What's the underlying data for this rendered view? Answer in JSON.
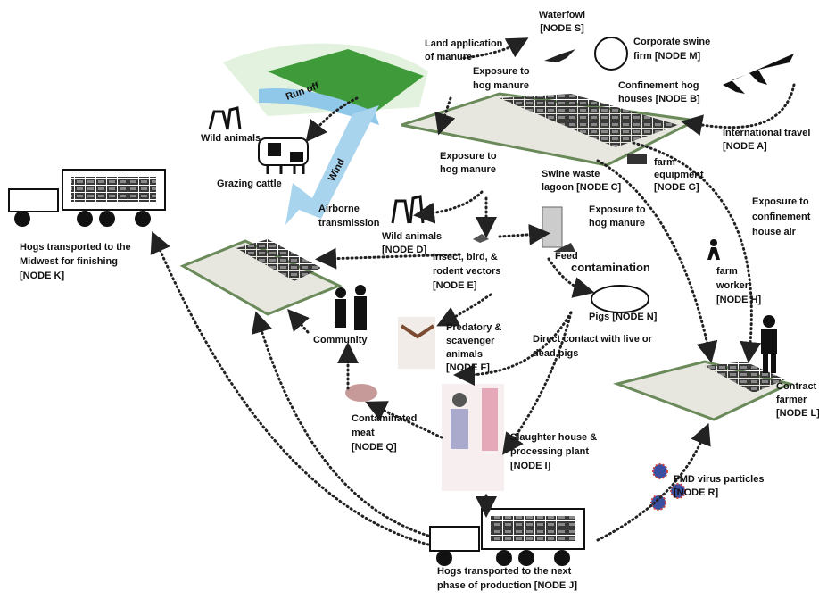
{
  "labels": [
    {
      "lines": [
        "Waterfowl",
        "[NODE S]"
      ]
    },
    {
      "lines": [
        "Land application",
        "of manure"
      ]
    },
    {
      "lines": [
        "Corporate swine",
        "firm  [NODE M]"
      ]
    },
    {
      "lines": [
        "Exposure to",
        "hog manure"
      ]
    },
    {
      "lines": [
        "Confinement hog",
        "houses  [NODE B]"
      ]
    },
    {
      "lines": [
        "Run  off"
      ]
    },
    {
      "lines": [
        "Wild animals"
      ]
    },
    {
      "lines": [
        "Grazing cattle"
      ]
    },
    {
      "lines": [
        "Wind"
      ]
    },
    {
      "lines": [
        "International travel",
        "[NODE A]"
      ]
    },
    {
      "lines": [
        "Exposure to",
        "hog manure"
      ]
    },
    {
      "lines": [
        "Swine waste",
        "lagoon [NODE C]"
      ]
    },
    {
      "lines": [
        "farm",
        "equipment",
        "[NODE G]"
      ]
    },
    {
      "lines": [
        "Exposure to",
        "hog manure"
      ]
    },
    {
      "lines": [
        "Exposure to",
        "confinement",
        "house air"
      ]
    },
    {
      "lines": [
        "Airborne",
        "transmission"
      ]
    },
    {
      "lines": [
        "Wild animals",
        "[NODE D]"
      ]
    },
    {
      "lines": [
        "Hogs transported to the",
        "Midwest for finishing",
        "[NODE K]"
      ]
    },
    {
      "lines": [
        "Insect, bird, &",
        "rodent vectors",
        "[NODE E]"
      ]
    },
    {
      "lines": [
        "Feed"
      ]
    },
    {
      "lines": [
        "contamination"
      ]
    },
    {
      "lines": [
        "farm",
        "worker",
        "[NODE H]"
      ]
    },
    {
      "lines": [
        "Pigs [NODE N]"
      ]
    },
    {
      "lines": [
        "Community"
      ]
    },
    {
      "lines": [
        "Predatory &",
        "scavenger",
        "animals",
        "[NODE F]"
      ]
    },
    {
      "lines": [
        "Direct contact with live or",
        "dead pigs"
      ]
    },
    {
      "lines": [
        "Contract",
        "farmer",
        "[NODE L]"
      ]
    },
    {
      "lines": [
        "Contaminated",
        "meat",
        "[NODE Q]"
      ]
    },
    {
      "lines": [
        "Slaughter house &",
        "processing plant",
        "[NODE I]"
      ]
    },
    {
      "lines": [
        "FMD virus particles",
        "[NODE R]"
      ]
    },
    {
      "lines": [
        "Hogs transported  to the next",
        "phase of production [NODE J]"
      ]
    }
  ]
}
